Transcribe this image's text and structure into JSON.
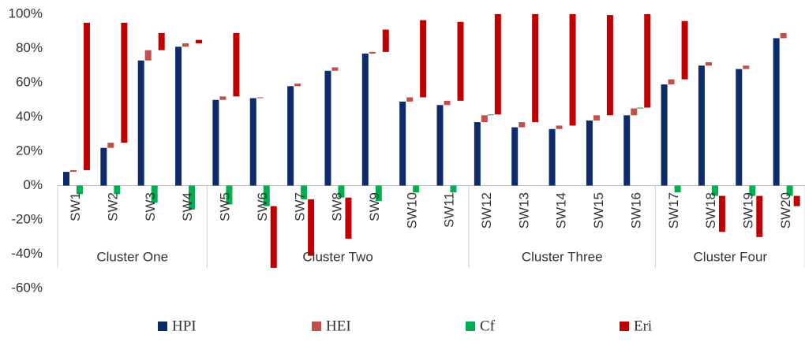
{
  "chart_data": {
    "type": "stacked-bar",
    "categories": [
      "SW1",
      "SW2",
      "SW3",
      "SW4",
      "SW5",
      "SW6",
      "SW7",
      "SW8",
      "SW9",
      "SW10",
      "SW11",
      "SW12",
      "SW13",
      "SW14",
      "SW15",
      "SW16",
      "SW17",
      "SW18",
      "SW19",
      "SW20"
    ],
    "groups": [
      {
        "label": "Cluster One",
        "count": 4
      },
      {
        "label": "Cluster Two",
        "count": 7
      },
      {
        "label": "Cluster Three",
        "count": 5
      },
      {
        "label": "Cluster Four",
        "count": 4
      }
    ],
    "series": [
      {
        "name": "HPI",
        "color": "#0d2a6b",
        "values": [
          8,
          22,
          73,
          81,
          50,
          51,
          58,
          67,
          77,
          49,
          47,
          37,
          34,
          33,
          38,
          41,
          59,
          70,
          68,
          86
        ]
      },
      {
        "name": "HEI",
        "color": "#c0504d",
        "values": [
          1,
          3,
          6,
          2,
          2,
          0.5,
          1.5,
          2,
          1,
          2.5,
          2.5,
          4,
          3,
          2,
          3,
          4,
          3,
          2,
          2,
          3
        ]
      },
      {
        "name": "Cf",
        "color": "#00b050",
        "values": [
          -5,
          -5,
          -10,
          -14,
          -11,
          -12,
          -8,
          -7,
          -9,
          -4,
          -4,
          0.5,
          0,
          0,
          0,
          0.5,
          -4,
          -6,
          -6,
          -6
        ]
      },
      {
        "name": "Eri",
        "color": "#c00000",
        "values": [
          86,
          70,
          10,
          2,
          37,
          -36,
          -33,
          -24,
          13,
          45,
          46,
          58.5,
          63,
          65,
          58.5,
          54.5,
          34,
          -21,
          -24,
          -6
        ]
      }
    ],
    "ylim": [
      -60,
      100
    ],
    "yticks": [
      {
        "value": -60,
        "label": "-60%"
      },
      {
        "value": -40,
        "label": "-40%"
      },
      {
        "value": -20,
        "label": "-20%"
      },
      {
        "value": 0,
        "label": "0%"
      },
      {
        "value": 20,
        "label": "20%"
      },
      {
        "value": 40,
        "label": "40%"
      },
      {
        "value": 60,
        "label": "60%"
      },
      {
        "value": 80,
        "label": "80%"
      },
      {
        "value": 100,
        "label": "100%"
      }
    ]
  }
}
